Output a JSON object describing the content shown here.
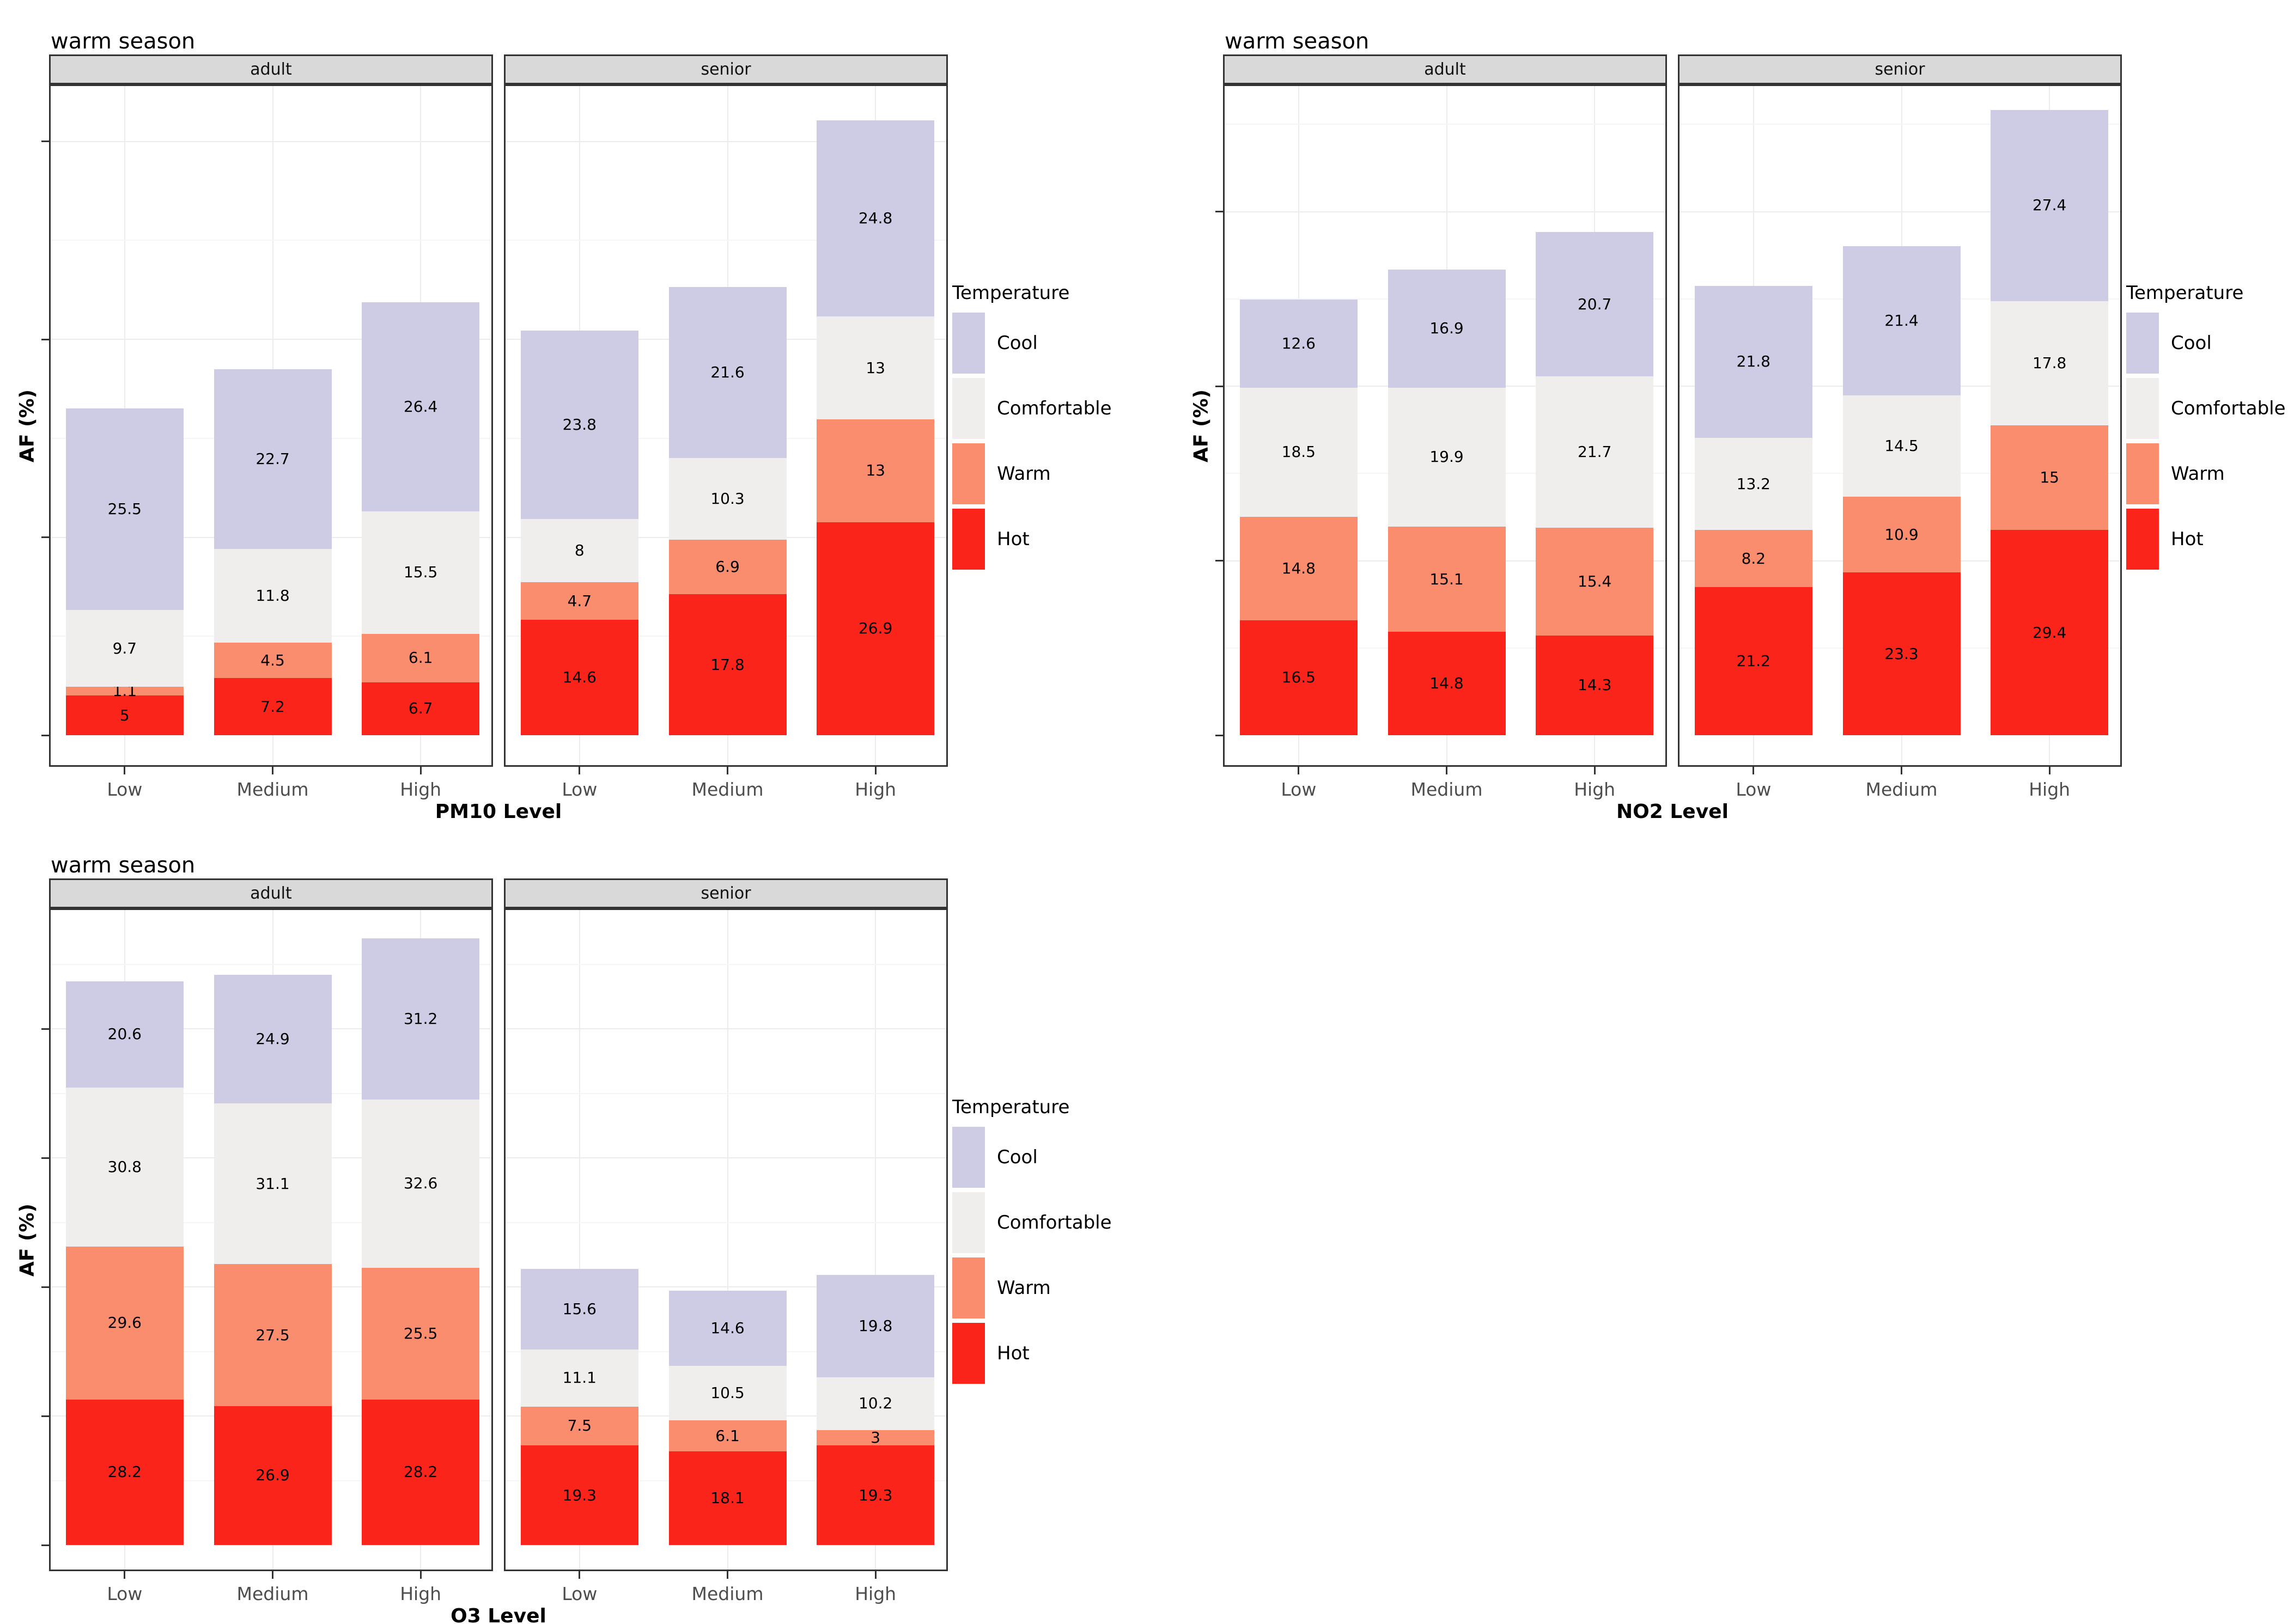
{
  "colors": {
    "background": "#ffffff",
    "strip_bg": "#d9d9d9",
    "panel_border": "#333333",
    "strip_border": "#333333",
    "axis_tick": "#333333",
    "axis_text": "#4d4d4d",
    "grid_major": "#ececec",
    "grid_minor": "#f5f5f5",
    "label_text": "#000000"
  },
  "legend": {
    "title": "Temperature",
    "position": "right",
    "items": [
      {
        "label": "Cool",
        "color": "#cdcce4"
      },
      {
        "label": "Comfortable",
        "color": "#efeeed"
      },
      {
        "label": "Warm",
        "color": "#fa8d6e"
      },
      {
        "label": "Hot",
        "color": "#fb241b"
      }
    ]
  },
  "chart_data": [
    {
      "type": "bar",
      "stacked": true,
      "title": "warm season",
      "xlabel": "PM10 Level",
      "ylabel": "AF (%)",
      "ylim": [
        0,
        82
      ],
      "y_tick_step": 25,
      "y_tick_labels_shown": false,
      "grid": true,
      "categories": [
        "Low",
        "Medium",
        "High"
      ],
      "stack_order_bottom_to_top": [
        "Hot",
        "Warm",
        "Comfortable",
        "Cool"
      ],
      "facets": [
        {
          "label": "adult",
          "series": [
            {
              "name": "Hot",
              "values": [
                5,
                7.2,
                6.7
              ]
            },
            {
              "name": "Warm",
              "values": [
                1.1,
                4.5,
                6.1
              ]
            },
            {
              "name": "Comfortable",
              "values": [
                9.7,
                11.8,
                15.5
              ]
            },
            {
              "name": "Cool",
              "values": [
                25.5,
                22.7,
                26.4
              ]
            }
          ]
        },
        {
          "label": "senior",
          "series": [
            {
              "name": "Hot",
              "values": [
                14.6,
                17.8,
                26.9
              ]
            },
            {
              "name": "Warm",
              "values": [
                4.7,
                6.9,
                13
              ]
            },
            {
              "name": "Comfortable",
              "values": [
                8,
                10.3,
                13
              ]
            },
            {
              "name": "Cool",
              "values": [
                23.8,
                21.6,
                24.8
              ]
            }
          ]
        }
      ]
    },
    {
      "type": "bar",
      "stacked": true,
      "title": "warm season",
      "xlabel": "NO2 Level",
      "ylabel": "AF (%)",
      "ylim": [
        0,
        93
      ],
      "y_tick_step": 25,
      "y_tick_labels_shown": false,
      "grid": true,
      "categories": [
        "Low",
        "Medium",
        "High"
      ],
      "stack_order_bottom_to_top": [
        "Hot",
        "Warm",
        "Comfortable",
        "Cool"
      ],
      "facets": [
        {
          "label": "adult",
          "series": [
            {
              "name": "Hot",
              "values": [
                16.5,
                14.8,
                14.3
              ]
            },
            {
              "name": "Warm",
              "values": [
                14.8,
                15.1,
                15.4
              ]
            },
            {
              "name": "Comfortable",
              "values": [
                18.5,
                19.9,
                21.7
              ]
            },
            {
              "name": "Cool",
              "values": [
                12.6,
                16.9,
                20.7
              ]
            }
          ]
        },
        {
          "label": "senior",
          "series": [
            {
              "name": "Hot",
              "values": [
                21.2,
                23.3,
                29.4
              ]
            },
            {
              "name": "Warm",
              "values": [
                8.2,
                10.9,
                15
              ]
            },
            {
              "name": "Comfortable",
              "values": [
                13.2,
                14.5,
                17.8
              ]
            },
            {
              "name": "Cool",
              "values": [
                21.8,
                21.4,
                27.4
              ]
            }
          ]
        }
      ]
    },
    {
      "type": "bar",
      "stacked": true,
      "title": "warm season",
      "xlabel": "O3 Level",
      "ylabel": "AF (%)",
      "ylim": [
        0,
        123
      ],
      "y_tick_step": 25,
      "y_tick_labels_shown": false,
      "grid": true,
      "categories": [
        "Low",
        "Medium",
        "High"
      ],
      "stack_order_bottom_to_top": [
        "Hot",
        "Warm",
        "Comfortable",
        "Cool"
      ],
      "facets": [
        {
          "label": "adult",
          "series": [
            {
              "name": "Hot",
              "values": [
                28.2,
                26.9,
                28.2
              ]
            },
            {
              "name": "Warm",
              "values": [
                29.6,
                27.5,
                25.5
              ]
            },
            {
              "name": "Comfortable",
              "values": [
                30.8,
                31.1,
                32.6
              ]
            },
            {
              "name": "Cool",
              "values": [
                20.6,
                24.9,
                31.2
              ]
            }
          ]
        },
        {
          "label": "senior",
          "series": [
            {
              "name": "Hot",
              "values": [
                19.3,
                18.1,
                19.3
              ]
            },
            {
              "name": "Warm",
              "values": [
                7.5,
                6.1,
                3
              ]
            },
            {
              "name": "Comfortable",
              "values": [
                11.1,
                10.5,
                10.2
              ]
            },
            {
              "name": "Cool",
              "values": [
                15.6,
                14.6,
                19.8
              ]
            }
          ]
        }
      ]
    }
  ]
}
